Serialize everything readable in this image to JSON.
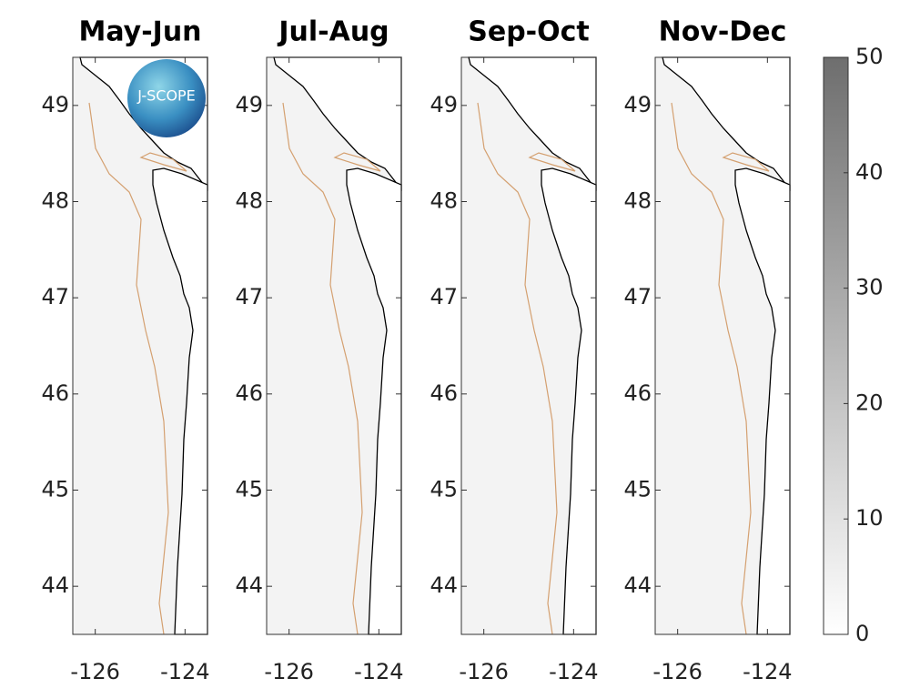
{
  "chart_data": [
    {
      "type": "map",
      "title": "May-Jun",
      "xlim": [
        -126.5,
        -123.5
      ],
      "ylim": [
        43.5,
        49.5
      ],
      "xticks": [
        -126,
        -124
      ],
      "yticks": [
        44,
        45,
        46,
        47,
        48,
        49
      ],
      "logo_text": "J-SCOPE"
    },
    {
      "type": "map",
      "title": "Jul-Aug",
      "xlim": [
        -126.5,
        -123.5
      ],
      "ylim": [
        43.5,
        49.5
      ],
      "xticks": [
        -126,
        -124
      ],
      "yticks": [
        44,
        45,
        46,
        47,
        48,
        49
      ]
    },
    {
      "type": "map",
      "title": "Sep-Oct",
      "xlim": [
        -126.5,
        -123.5
      ],
      "ylim": [
        43.5,
        49.5
      ],
      "xticks": [
        -126,
        -124
      ],
      "yticks": [
        44,
        45,
        46,
        47,
        48,
        49
      ]
    },
    {
      "type": "map",
      "title": "Nov-Dec",
      "xlim": [
        -126.5,
        -123.5
      ],
      "ylim": [
        43.5,
        49.5
      ],
      "xticks": [
        -126,
        -124
      ],
      "yticks": [
        44,
        45,
        46,
        47,
        48,
        49
      ]
    },
    {
      "type": "colorbar",
      "ylim": [
        0,
        50
      ],
      "yticks": [
        0,
        10,
        20,
        30,
        40,
        50
      ],
      "colormap": [
        "#ffffff",
        "#6e6e6e"
      ]
    }
  ]
}
